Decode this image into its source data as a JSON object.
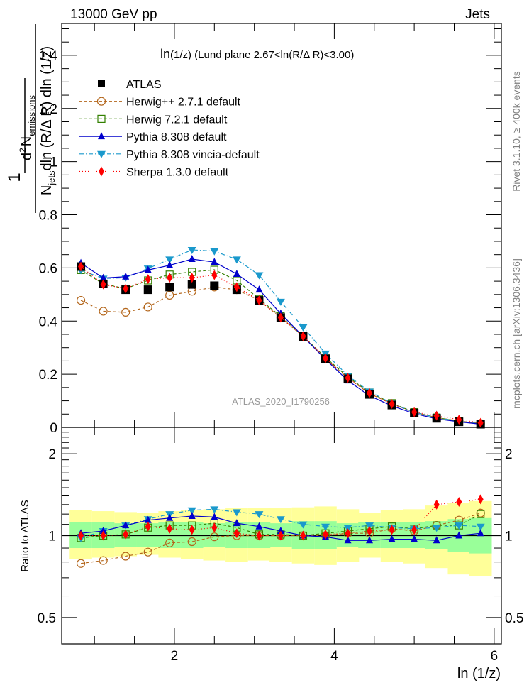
{
  "header": {
    "left": "13000 GeV pp",
    "right": "Jets"
  },
  "side_labels": {
    "rivet": "Rivet 3.1.10, ≥ 400k events",
    "mcplots": "mcplots.cern.ch [arXiv:1306.3436]"
  },
  "chart_data": [
    {
      "type": "scatter",
      "title": "ln(1/z) (Lund plane 2.67<ln(R/Δ R)<3.00)",
      "title_parts": {
        "a": "ln",
        "b": "(1/z)",
        "c": " (Lund plane 2.67<ln(R/Δ R)<3.00)"
      },
      "ylabel_parts": {
        "one": "1",
        "num_d": "d",
        "num_sup": "2",
        "num_N": "N",
        "num_sub": "emissions",
        "den_N": "N",
        "den_sub": "jets",
        "den_rest": "dln (R/Δ R) dln (1/z)"
      },
      "xlabel": "ln (1/z)",
      "watermark": "ATLAS_2020_I1790256",
      "xlim": [
        0.59,
        6.09
      ],
      "ylim": [
        0,
        1.52
      ],
      "yticks": [
        0,
        0.2,
        0.4,
        0.6,
        0.8,
        1,
        1.2,
        1.4
      ],
      "ytick_labels": [
        "0",
        "0.2",
        "0.4",
        "0.6",
        "0.8",
        "1",
        "1.2",
        "1.4"
      ],
      "legend_position": "top-left",
      "x": [
        0.83,
        1.11,
        1.39,
        1.67,
        1.94,
        2.22,
        2.5,
        2.78,
        3.06,
        3.33,
        3.61,
        3.89,
        4.17,
        4.44,
        4.72,
        5.0,
        5.28,
        5.56,
        5.83
      ],
      "series": [
        {
          "name": "ATLAS",
          "color": "#000000",
          "marker": "square-filled",
          "line": "none",
          "values": [
            0.605,
            0.54,
            0.518,
            0.518,
            0.528,
            0.538,
            0.533,
            0.518,
            0.478,
            0.413,
            0.342,
            0.258,
            0.183,
            0.124,
            0.084,
            0.054,
            0.034,
            0.021,
            0.012
          ]
        },
        {
          "name": "Herwig++ 2.7.1 default",
          "color": "#b3651a",
          "marker": "circle-open",
          "line": "dashed",
          "values": [
            0.478,
            0.437,
            0.433,
            0.453,
            0.497,
            0.512,
            0.528,
            0.518,
            0.478,
            0.413,
            0.342,
            0.258,
            0.186,
            0.127,
            0.089,
            0.056,
            0.037,
            0.024,
            0.015
          ]
        },
        {
          "name": "Herwig 7.2.1 default",
          "color": "#338000",
          "marker": "square-open",
          "line": "dashed",
          "values": [
            0.592,
            0.54,
            0.522,
            0.553,
            0.575,
            0.585,
            0.593,
            0.553,
            0.483,
            0.418,
            0.343,
            0.263,
            0.19,
            0.131,
            0.091,
            0.057,
            0.037,
            0.023,
            0.013
          ]
        },
        {
          "name": "Pythia 8.308 default",
          "color": "#0000cc",
          "marker": "triangle-up",
          "line": "solid",
          "values": [
            0.618,
            0.562,
            0.567,
            0.592,
            0.61,
            0.633,
            0.622,
            0.577,
            0.518,
            0.428,
            0.342,
            0.256,
            0.176,
            0.119,
            0.081,
            0.052,
            0.032,
            0.021,
            0.012
          ]
        },
        {
          "name": "Pythia 8.308 vincia-default",
          "color": "#1a99cc",
          "marker": "triangle-down",
          "line": "dashdot",
          "values": [
            0.592,
            0.56,
            0.563,
            0.598,
            0.632,
            0.668,
            0.663,
            0.632,
            0.573,
            0.473,
            0.377,
            0.278,
            0.195,
            0.135,
            0.09,
            0.057,
            0.036,
            0.023,
            0.013
          ]
        },
        {
          "name": "Sherpa 1.3.0 default",
          "color": "#ff0000",
          "marker": "diamond",
          "line": "dotted",
          "values": [
            0.605,
            0.538,
            0.522,
            0.558,
            0.563,
            0.563,
            0.573,
            0.528,
            0.478,
            0.413,
            0.343,
            0.26,
            0.186,
            0.129,
            0.088,
            0.057,
            0.044,
            0.029,
            0.017
          ]
        }
      ]
    },
    {
      "type": "scatter",
      "title": "",
      "ylabel": "Ratio to ATLAS",
      "xlabel": "ln (1/z)",
      "yscale": "log",
      "xlim": [
        0.59,
        6.09
      ],
      "ylim": [
        0.4,
        2.5
      ],
      "xticks": [
        2,
        4,
        6
      ],
      "xtick_labels": [
        "2",
        "4",
        "6"
      ],
      "yticks": [
        0.5,
        1,
        2
      ],
      "ytick_labels": [
        "0.5",
        "1",
        "2"
      ],
      "reference_line": 1,
      "bands": {
        "inner_color": "#99ff99",
        "outer_color": "#ffff99",
        "inner": [
          [
            0.9,
            1.12
          ],
          [
            0.9,
            1.12
          ],
          [
            0.91,
            1.11
          ],
          [
            0.91,
            1.11
          ],
          [
            0.9,
            1.12
          ],
          [
            0.9,
            1.12
          ],
          [
            0.91,
            1.11
          ],
          [
            0.9,
            1.12
          ],
          [
            0.9,
            1.12
          ],
          [
            0.91,
            1.11
          ],
          [
            0.89,
            1.13
          ],
          [
            0.89,
            1.13
          ],
          [
            0.91,
            1.11
          ],
          [
            0.9,
            1.12
          ],
          [
            0.9,
            1.12
          ],
          [
            0.9,
            1.12
          ],
          [
            0.89,
            1.13
          ],
          [
            0.87,
            1.15
          ],
          [
            0.86,
            1.16
          ]
        ],
        "outer": [
          [
            0.82,
            1.24
          ],
          [
            0.83,
            1.23
          ],
          [
            0.84,
            1.22
          ],
          [
            0.85,
            1.21
          ],
          [
            0.83,
            1.23
          ],
          [
            0.82,
            1.24
          ],
          [
            0.81,
            1.25
          ],
          [
            0.8,
            1.26
          ],
          [
            0.81,
            1.26
          ],
          [
            0.8,
            1.26
          ],
          [
            0.79,
            1.27
          ],
          [
            0.78,
            1.28
          ],
          [
            0.8,
            1.25
          ],
          [
            0.83,
            1.21
          ],
          [
            0.8,
            1.24
          ],
          [
            0.79,
            1.25
          ],
          [
            0.76,
            1.29
          ],
          [
            0.72,
            1.32
          ],
          [
            0.71,
            1.34
          ]
        ]
      },
      "x": [
        0.83,
        1.11,
        1.39,
        1.67,
        1.94,
        2.22,
        2.5,
        2.78,
        3.06,
        3.33,
        3.61,
        3.89,
        4.17,
        4.44,
        4.72,
        5.0,
        5.28,
        5.56,
        5.83
      ],
      "series": [
        {
          "name": "Herwig++ 2.7.1 default",
          "color": "#b3651a",
          "marker": "circle-open",
          "line": "dashed",
          "values": [
            0.79,
            0.81,
            0.84,
            0.87,
            0.94,
            0.95,
            0.99,
            1.0,
            1.0,
            1.0,
            1.0,
            1.0,
            1.02,
            1.02,
            1.06,
            1.04,
            1.09,
            1.14,
            1.21
          ]
        },
        {
          "name": "Herwig 7.2.1 default",
          "color": "#338000",
          "marker": "square-open",
          "line": "dashed",
          "values": [
            0.98,
            1.0,
            1.01,
            1.07,
            1.09,
            1.09,
            1.11,
            1.07,
            1.01,
            1.01,
            1.0,
            1.02,
            1.04,
            1.06,
            1.08,
            1.06,
            1.09,
            1.09,
            1.2
          ]
        },
        {
          "name": "Pythia 8.308 default",
          "color": "#0000cc",
          "marker": "triangle-up",
          "line": "solid",
          "values": [
            1.02,
            1.04,
            1.09,
            1.14,
            1.16,
            1.18,
            1.17,
            1.11,
            1.08,
            1.04,
            1.0,
            0.99,
            0.96,
            0.96,
            0.97,
            0.97,
            0.96,
            1.0,
            1.02
          ]
        },
        {
          "name": "Pythia 8.308 vincia-default",
          "color": "#1a99cc",
          "marker": "triangle-down",
          "line": "dashdot",
          "values": [
            0.98,
            1.04,
            1.09,
            1.15,
            1.2,
            1.24,
            1.25,
            1.22,
            1.2,
            1.15,
            1.1,
            1.08,
            1.07,
            1.09,
            1.07,
            1.06,
            1.07,
            1.09,
            1.08
          ]
        },
        {
          "name": "Sherpa 1.3.0 default",
          "color": "#ff0000",
          "marker": "diamond",
          "line": "dotted",
          "values": [
            1.0,
            1.0,
            1.01,
            1.08,
            1.06,
            1.05,
            1.07,
            1.02,
            1.0,
            1.0,
            1.0,
            1.01,
            1.02,
            1.04,
            1.05,
            1.05,
            1.3,
            1.33,
            1.36
          ]
        }
      ]
    }
  ]
}
